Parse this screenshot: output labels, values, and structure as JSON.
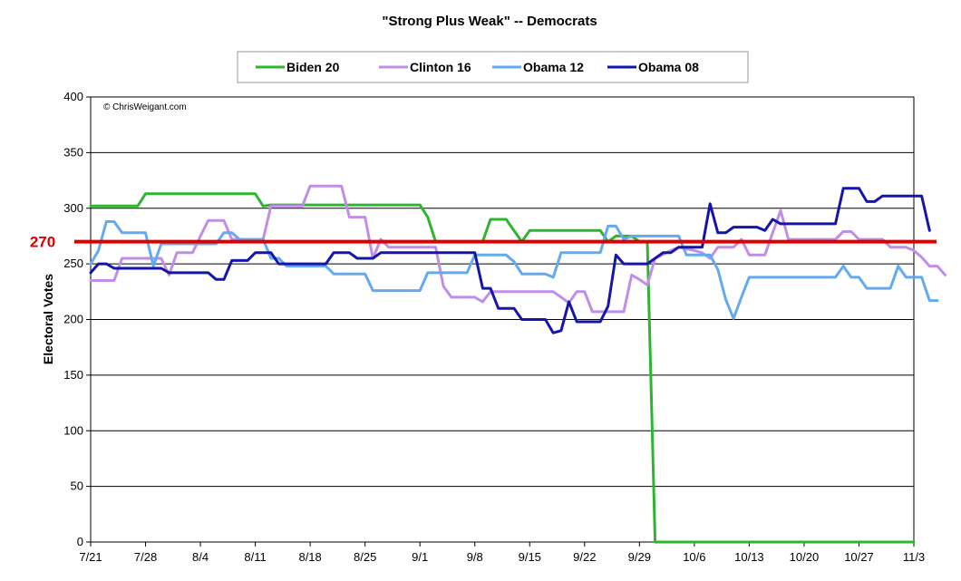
{
  "chart_data": {
    "type": "line",
    "title": "\"Strong Plus Weak\" -- Democrats",
    "xlabel": "",
    "ylabel": "Electoral Votes",
    "ylim": [
      0,
      400
    ],
    "yticks": [
      0,
      50,
      100,
      150,
      200,
      250,
      300,
      350,
      400
    ],
    "x_range_days": [
      0,
      105
    ],
    "xtick_labels": [
      "7/21",
      "7/28",
      "8/4",
      "8/11",
      "8/18",
      "8/25",
      "9/1",
      "9/8",
      "9/15",
      "9/22",
      "9/29",
      "10/6",
      "10/13",
      "10/20",
      "10/27",
      "11/3"
    ],
    "grid": "horizontal",
    "legend_position": "top",
    "annotation": "© ChrisWeigant.com",
    "reference_line": {
      "value": 270,
      "label": "270",
      "color": "#dd0000"
    },
    "series": [
      {
        "name": "Biden 20",
        "color": "#2eb52e",
        "points": [
          [
            0,
            302
          ],
          [
            6,
            302
          ],
          [
            7,
            313
          ],
          [
            21,
            313
          ],
          [
            22,
            302
          ],
          [
            23,
            303
          ],
          [
            42,
            303
          ],
          [
            43,
            292
          ],
          [
            44,
            270
          ],
          [
            50,
            270
          ],
          [
            51,
            290
          ],
          [
            53,
            290
          ],
          [
            55,
            270
          ],
          [
            56,
            280
          ],
          [
            65,
            280
          ],
          [
            66,
            270
          ],
          [
            67,
            275
          ],
          [
            69,
            275
          ],
          [
            70,
            270
          ],
          [
            71,
            270
          ],
          [
            72,
            0
          ],
          [
            105,
            0
          ]
        ]
      },
      {
        "name": "Clinton 16",
        "color": "#c08ee8",
        "points": [
          [
            0,
            235
          ],
          [
            3,
            235
          ],
          [
            4,
            255
          ],
          [
            9,
            255
          ],
          [
            10,
            240
          ],
          [
            11,
            260
          ],
          [
            13,
            260
          ],
          [
            14,
            275
          ],
          [
            15,
            289
          ],
          [
            17,
            289
          ],
          [
            18,
            272
          ],
          [
            22,
            272
          ],
          [
            23,
            302
          ],
          [
            27,
            302
          ],
          [
            28,
            320
          ],
          [
            32,
            320
          ],
          [
            33,
            292
          ],
          [
            35,
            292
          ],
          [
            36,
            255
          ],
          [
            37,
            272
          ],
          [
            38,
            265
          ],
          [
            44,
            265
          ],
          [
            45,
            230
          ],
          [
            46,
            220
          ],
          [
            49,
            220
          ],
          [
            50,
            216
          ],
          [
            51,
            225
          ],
          [
            59,
            225
          ],
          [
            60,
            220
          ],
          [
            61,
            215
          ],
          [
            62,
            225
          ],
          [
            63,
            225
          ],
          [
            64,
            207
          ],
          [
            68,
            207
          ],
          [
            69,
            240
          ],
          [
            70,
            236
          ],
          [
            71,
            231
          ],
          [
            72,
            255
          ],
          [
            74,
            262
          ],
          [
            75,
            265
          ],
          [
            77,
            262
          ],
          [
            78,
            260
          ],
          [
            79,
            255
          ],
          [
            80,
            265
          ],
          [
            82,
            265
          ],
          [
            83,
            272
          ],
          [
            84,
            258
          ],
          [
            86,
            258
          ],
          [
            87,
            278
          ],
          [
            88,
            298
          ],
          [
            89,
            272
          ],
          [
            95,
            272
          ],
          [
            96,
            279
          ],
          [
            97,
            279
          ],
          [
            98,
            272
          ],
          [
            101,
            272
          ],
          [
            102,
            265
          ],
          [
            104,
            265
          ],
          [
            105,
            262
          ],
          [
            106,
            256
          ],
          [
            107,
            248
          ],
          [
            108,
            248
          ],
          [
            109,
            240
          ]
        ]
      },
      {
        "name": "Obama 12",
        "color": "#63aaee",
        "points": [
          [
            0,
            250
          ],
          [
            1,
            262
          ],
          [
            2,
            288
          ],
          [
            3,
            288
          ],
          [
            4,
            278
          ],
          [
            7,
            278
          ],
          [
            8,
            248
          ],
          [
            9,
            268
          ],
          [
            16,
            268
          ],
          [
            17,
            278
          ],
          [
            18,
            278
          ],
          [
            19,
            272
          ],
          [
            22,
            272
          ],
          [
            23,
            255
          ],
          [
            24,
            255
          ],
          [
            25,
            248
          ],
          [
            30,
            248
          ],
          [
            31,
            241
          ],
          [
            35,
            241
          ],
          [
            36,
            226
          ],
          [
            42,
            226
          ],
          [
            43,
            242
          ],
          [
            48,
            242
          ],
          [
            49,
            258
          ],
          [
            53,
            258
          ],
          [
            54,
            252
          ],
          [
            55,
            241
          ],
          [
            58,
            241
          ],
          [
            59,
            238
          ],
          [
            60,
            260
          ],
          [
            65,
            260
          ],
          [
            66,
            284
          ],
          [
            67,
            284
          ],
          [
            68,
            272
          ],
          [
            69,
            275
          ],
          [
            75,
            275
          ],
          [
            76,
            258
          ],
          [
            79,
            258
          ],
          [
            80,
            245
          ],
          [
            81,
            218
          ],
          [
            82,
            201
          ],
          [
            83,
            220
          ],
          [
            84,
            238
          ],
          [
            95,
            238
          ],
          [
            96,
            248
          ],
          [
            97,
            238
          ],
          [
            98,
            238
          ],
          [
            99,
            228
          ],
          [
            102,
            228
          ],
          [
            103,
            248
          ],
          [
            104,
            238
          ],
          [
            106,
            238
          ],
          [
            107,
            217
          ],
          [
            108,
            217
          ]
        ]
      },
      {
        "name": "Obama 08",
        "color": "#1515aa",
        "points": [
          [
            0,
            242
          ],
          [
            1,
            250
          ],
          [
            2,
            250
          ],
          [
            3,
            246
          ],
          [
            9,
            246
          ],
          [
            10,
            242
          ],
          [
            15,
            242
          ],
          [
            16,
            236
          ],
          [
            17,
            236
          ],
          [
            18,
            253
          ],
          [
            20,
            253
          ],
          [
            21,
            260
          ],
          [
            23,
            260
          ],
          [
            24,
            250
          ],
          [
            30,
            250
          ],
          [
            31,
            260
          ],
          [
            33,
            260
          ],
          [
            34,
            255
          ],
          [
            36,
            255
          ],
          [
            37,
            260
          ],
          [
            49,
            260
          ],
          [
            50,
            228
          ],
          [
            51,
            228
          ],
          [
            52,
            210
          ],
          [
            54,
            210
          ],
          [
            55,
            200
          ],
          [
            58,
            200
          ],
          [
            59,
            188
          ],
          [
            60,
            190
          ],
          [
            61,
            216
          ],
          [
            62,
            198
          ],
          [
            65,
            198
          ],
          [
            66,
            212
          ],
          [
            67,
            258
          ],
          [
            68,
            250
          ],
          [
            71,
            250
          ],
          [
            72,
            255
          ],
          [
            73,
            260
          ],
          [
            74,
            260
          ],
          [
            75,
            265
          ],
          [
            78,
            265
          ],
          [
            79,
            304
          ],
          [
            80,
            278
          ],
          [
            81,
            278
          ],
          [
            82,
            283
          ],
          [
            85,
            283
          ],
          [
            86,
            280
          ],
          [
            87,
            290
          ],
          [
            88,
            286
          ],
          [
            95,
            286
          ],
          [
            96,
            318
          ],
          [
            98,
            318
          ],
          [
            99,
            306
          ],
          [
            100,
            306
          ],
          [
            101,
            311
          ],
          [
            105,
            311
          ],
          [
            106,
            311
          ],
          [
            107,
            280
          ]
        ]
      }
    ]
  }
}
